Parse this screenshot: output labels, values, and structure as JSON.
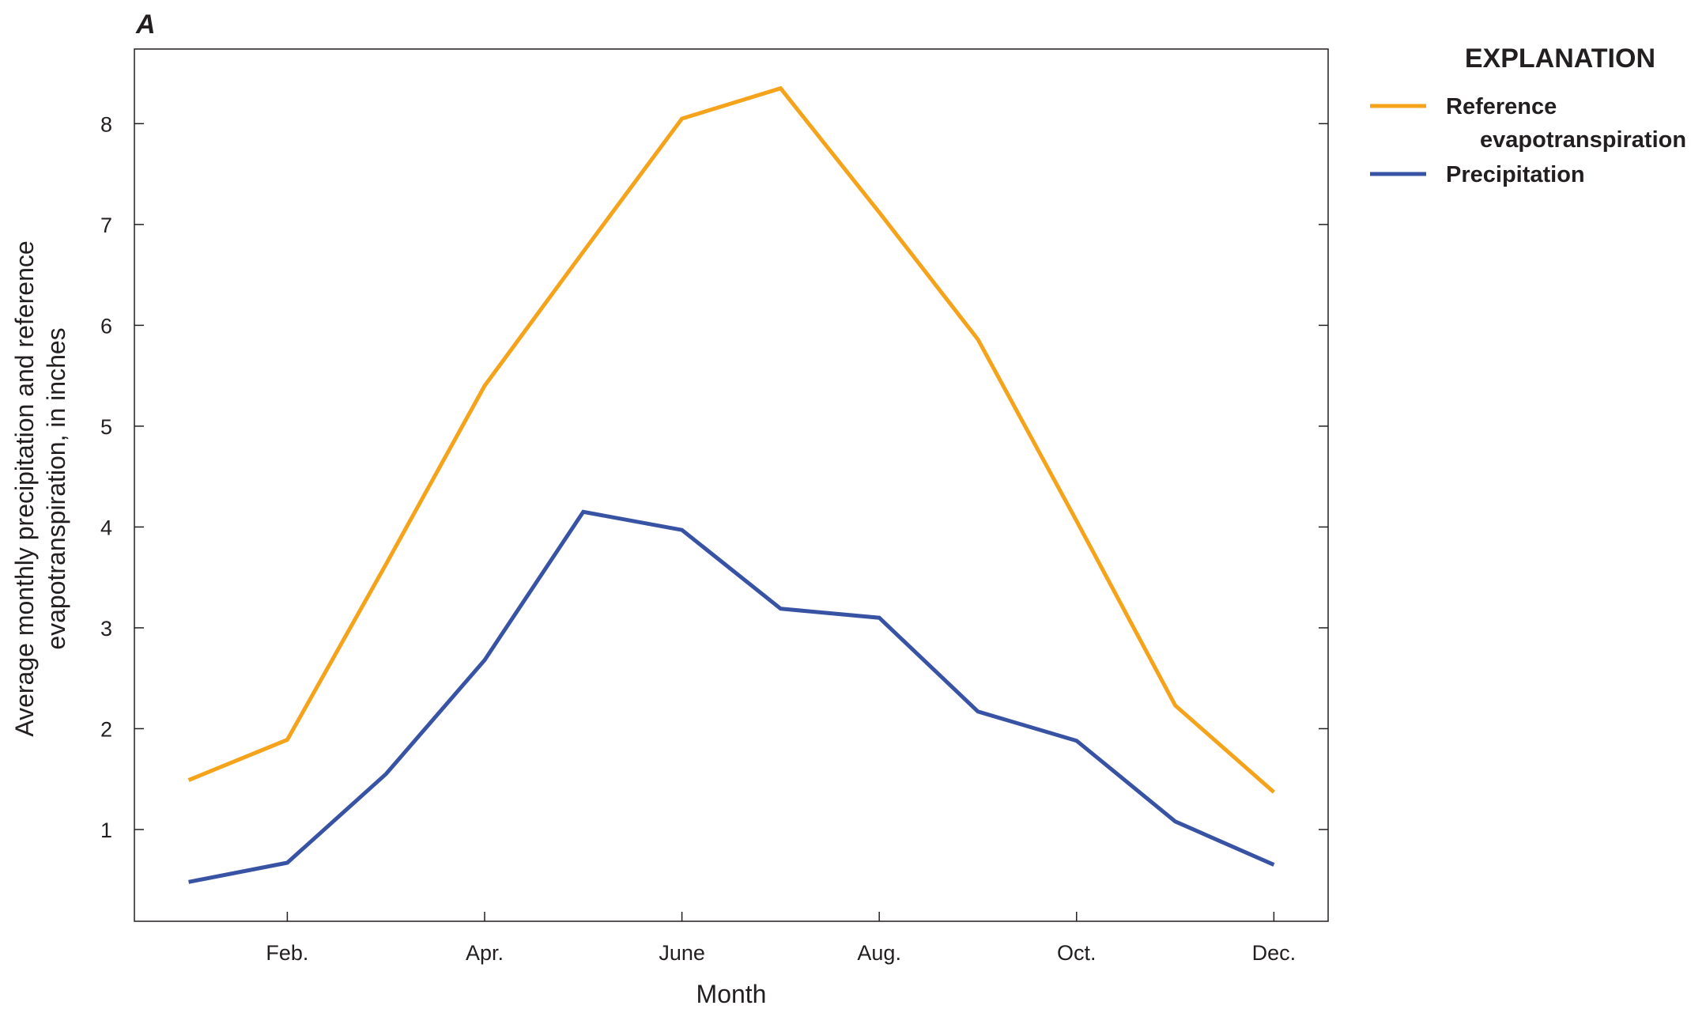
{
  "chart_data": {
    "type": "line",
    "panel_label": "A",
    "xlabel": "Month",
    "ylabel_lines": [
      "Average monthly precipitation and reference",
      "evapotranspiration, in inches"
    ],
    "x": [
      1,
      2,
      3,
      4,
      5,
      6,
      7,
      8,
      9,
      10,
      11,
      12
    ],
    "x_tick_values": [
      2,
      4,
      6,
      8,
      10,
      12
    ],
    "x_tick_labels": [
      "Feb.",
      "Apr.",
      "June",
      "Aug.",
      "Oct.",
      "Dec."
    ],
    "y_ticks": [
      1,
      2,
      3,
      4,
      5,
      6,
      7,
      8
    ],
    "xlim": [
      0.45,
      12.55
    ],
    "ylim": [
      0.09,
      8.74
    ],
    "grid": false,
    "legend": {
      "title": "EXPLANATION",
      "placement": "right"
    },
    "series": [
      {
        "name": "Reference evapotranspiration",
        "label_lines": [
          "Reference",
          "evapotranspiration"
        ],
        "color": "#f5a31a",
        "values": [
          1.49,
          1.89,
          3.63,
          5.4,
          6.73,
          8.05,
          8.35,
          7.12,
          5.86,
          4.06,
          2.23,
          1.37
        ]
      },
      {
        "name": "Precipitation",
        "label_lines": [
          "Precipitation"
        ],
        "color": "#3953a4",
        "values": [
          0.48,
          0.67,
          1.55,
          2.68,
          4.15,
          3.97,
          3.19,
          3.1,
          2.17,
          1.88,
          1.08,
          0.65
        ]
      }
    ]
  }
}
